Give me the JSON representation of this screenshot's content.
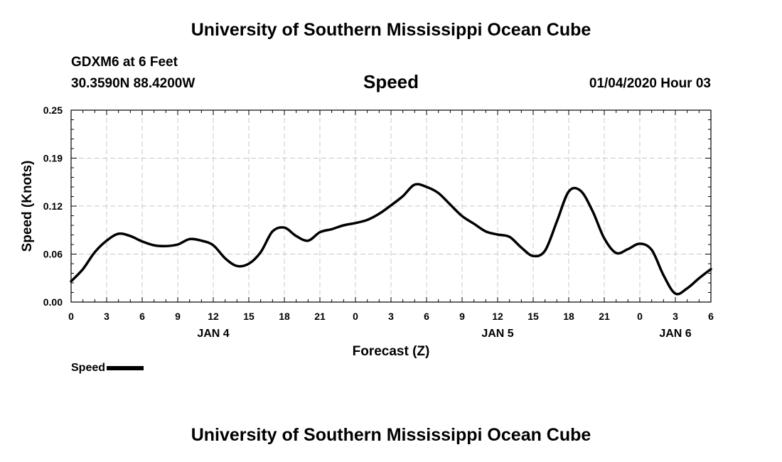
{
  "header": {
    "institution": "University of Southern Mississippi Ocean Cube",
    "station": "GDXM6 at 6 Feet",
    "coordinates": "30.3590N 88.4200W",
    "valid_time": "01/04/2020 Hour 03"
  },
  "footer": {
    "institution": "University of Southern Mississippi Ocean Cube"
  },
  "chart_data": {
    "type": "line",
    "title": "Speed",
    "xlabel": "Forecast (Z)",
    "ylabel": "Speed (Knots)",
    "ylim": [
      0,
      0.25
    ],
    "xlim": [
      0,
      54
    ],
    "yticks": [
      "0.00",
      "0.06",
      "0.12",
      "0.19",
      "0.25"
    ],
    "xtick_labels": [
      "0",
      "3",
      "6",
      "9",
      "12",
      "15",
      "18",
      "21",
      "0",
      "3",
      "6",
      "9",
      "12",
      "15",
      "18",
      "21",
      "0",
      "3",
      "6"
    ],
    "day_labels": [
      {
        "label": "JAN 4",
        "hour": 12
      },
      {
        "label": "JAN 5",
        "hour": 36
      },
      {
        "label": "JAN 6",
        "hour": 51
      }
    ],
    "grid": true,
    "legend_position": "bottom-left",
    "series": [
      {
        "name": "Speed",
        "color": "#000000",
        "hours_from_jan4_00z": [
          0,
          1,
          2,
          3,
          4,
          5,
          6,
          7,
          8,
          9,
          10,
          11,
          12,
          13,
          14,
          15,
          16,
          17,
          18,
          19,
          20,
          21,
          22,
          23,
          24,
          25,
          26,
          27,
          28,
          29,
          30,
          31,
          32,
          33,
          34,
          35,
          36,
          37,
          38,
          39,
          40,
          41,
          42,
          43,
          44,
          45,
          46,
          47,
          48,
          49,
          50,
          51,
          52,
          53,
          54
        ],
        "values": [
          0.027,
          0.043,
          0.065,
          0.08,
          0.089,
          0.086,
          0.079,
          0.074,
          0.073,
          0.075,
          0.082,
          0.08,
          0.074,
          0.057,
          0.047,
          0.05,
          0.065,
          0.092,
          0.097,
          0.086,
          0.08,
          0.091,
          0.095,
          0.1,
          0.103,
          0.107,
          0.115,
          0.126,
          0.138,
          0.153,
          0.15,
          0.142,
          0.127,
          0.112,
          0.102,
          0.092,
          0.088,
          0.085,
          0.071,
          0.06,
          0.067,
          0.105,
          0.144,
          0.145,
          0.119,
          0.083,
          0.064,
          0.069,
          0.076,
          0.068,
          0.035,
          0.011,
          0.018,
          0.031,
          0.043
        ]
      }
    ]
  }
}
